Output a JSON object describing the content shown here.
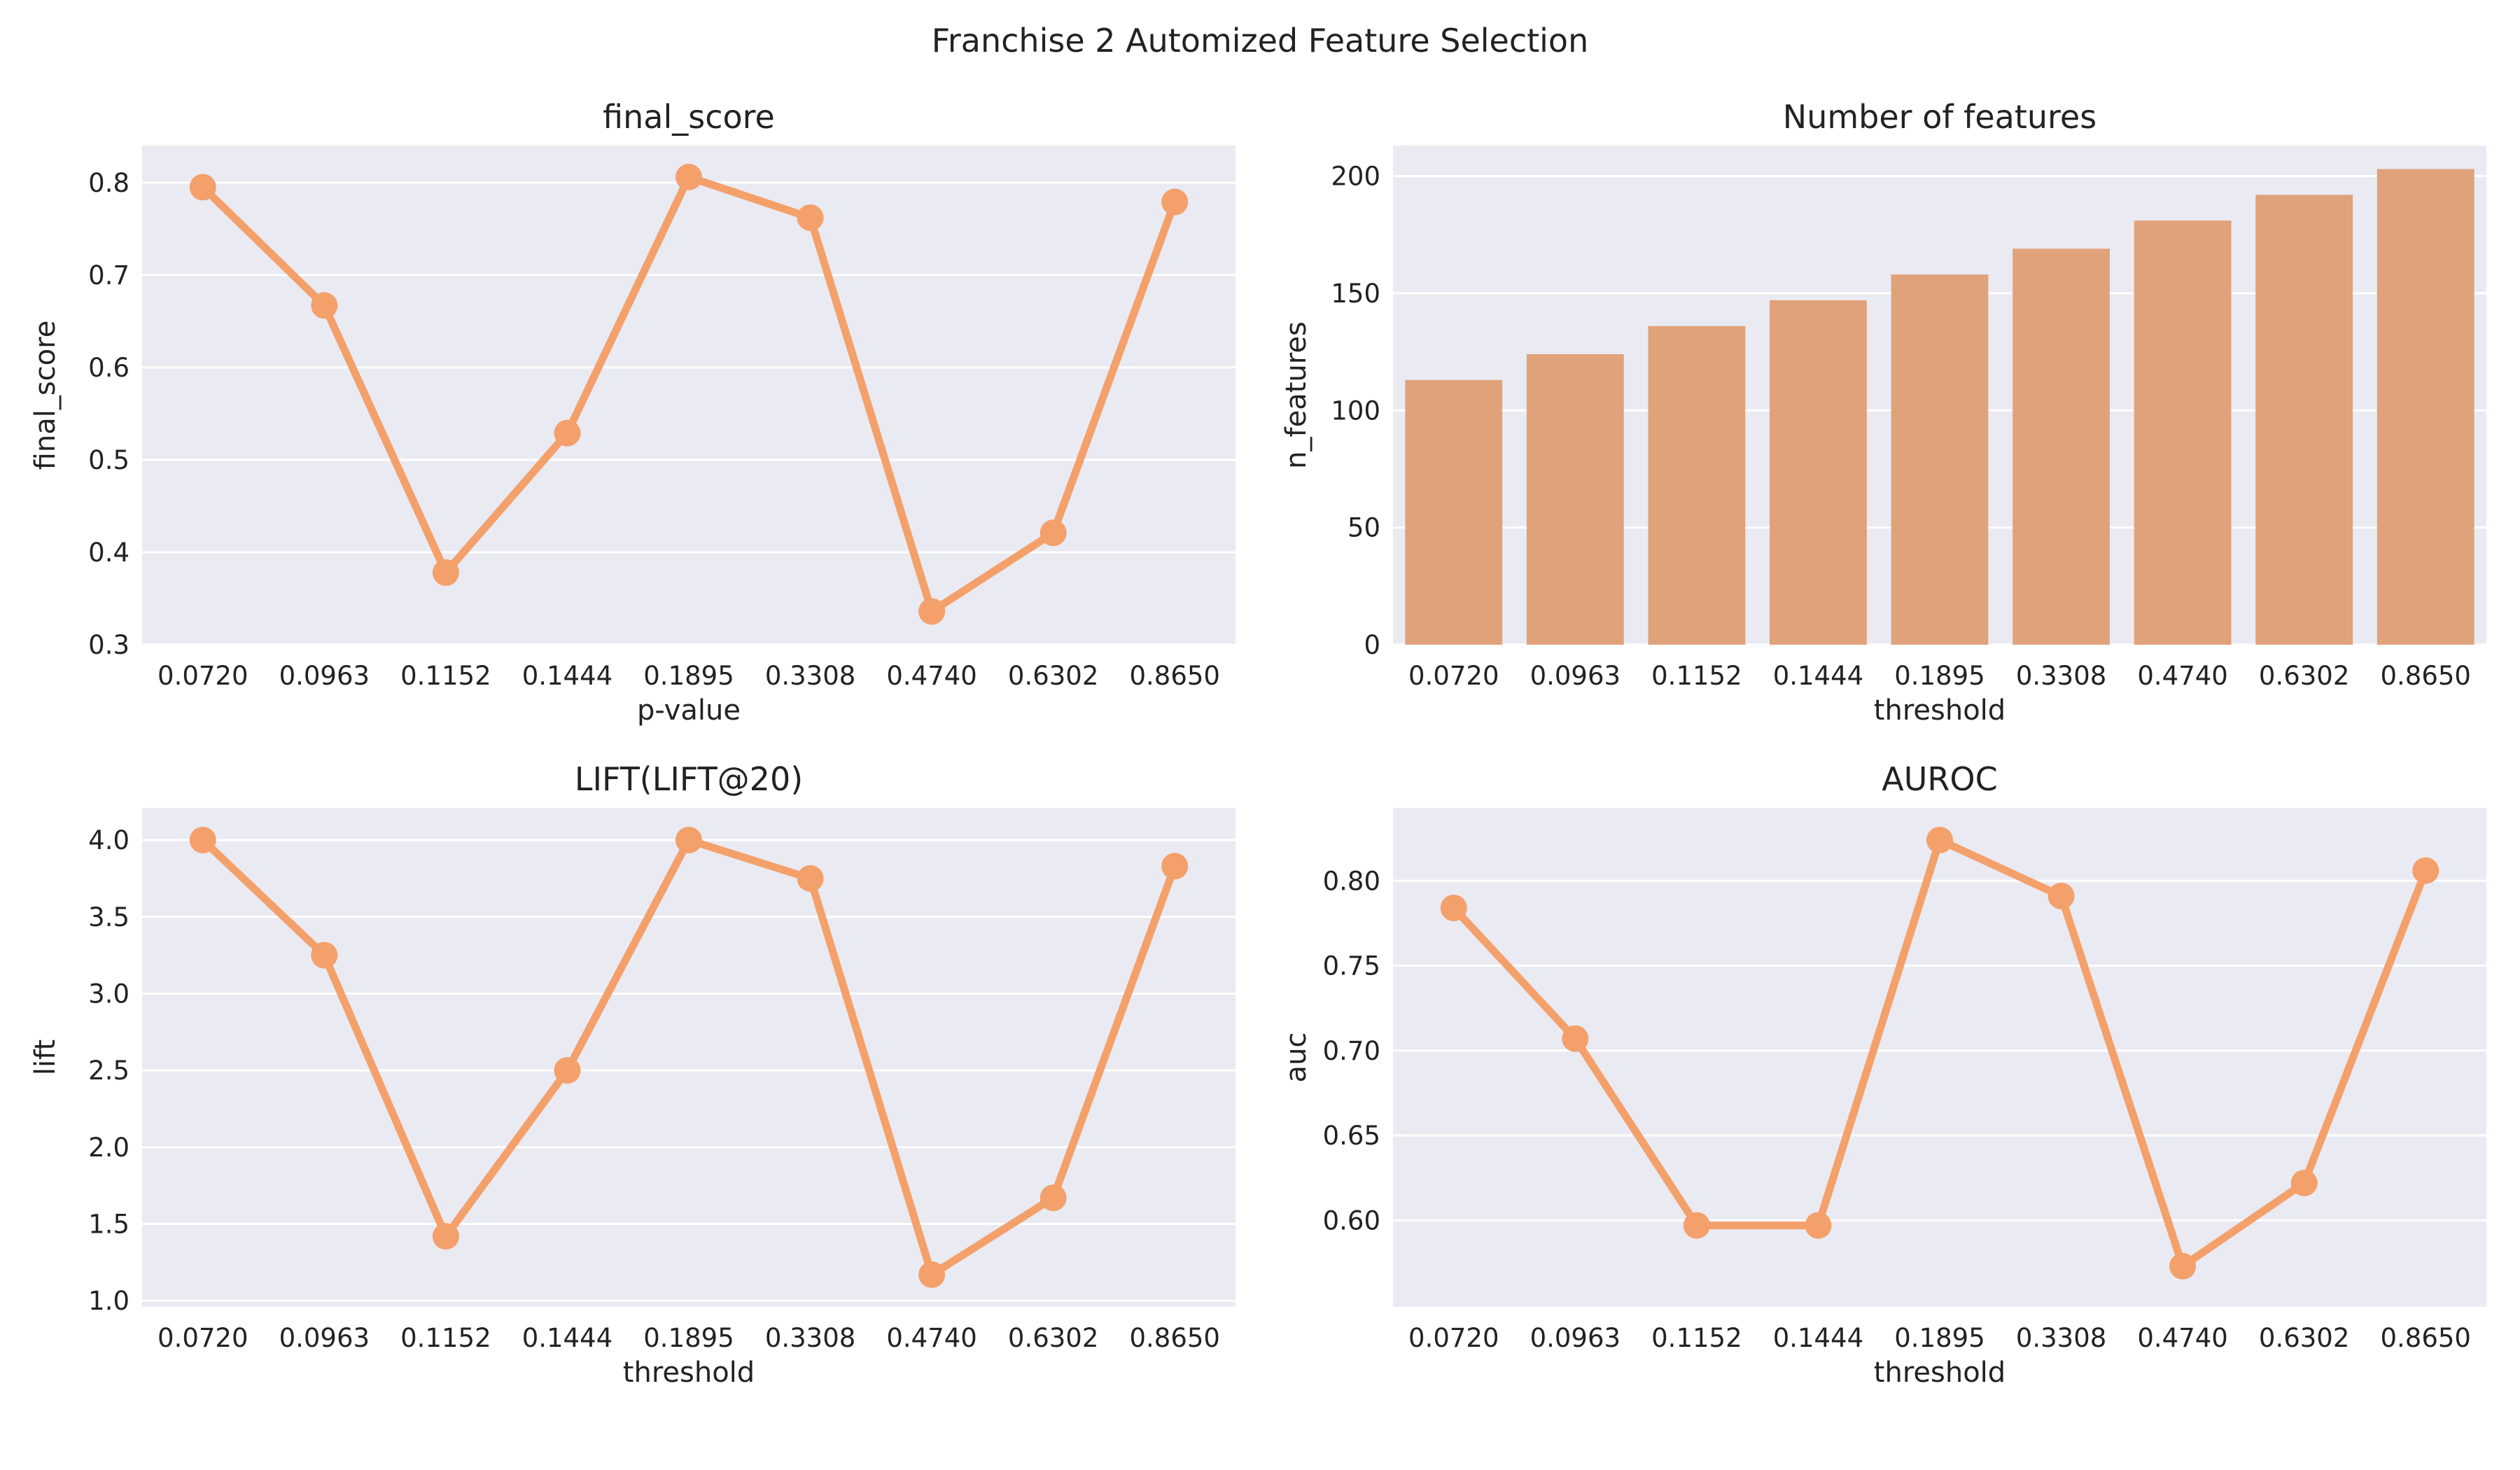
{
  "figure": {
    "title": "Franchise 2 Automized Feature Selection"
  },
  "colors": {
    "background": "#eaeaf2",
    "line": "#f4a06b",
    "bar": "#e0a27b"
  },
  "chart_data": [
    {
      "id": "final-score",
      "type": "line",
      "title": "final_score",
      "xlabel": "p-value",
      "ylabel": "final_score",
      "categories": [
        "0.0720",
        "0.0963",
        "0.1152",
        "0.1444",
        "0.1895",
        "0.3308",
        "0.4740",
        "0.6302",
        "0.8650"
      ],
      "values": [
        0.795,
        0.667,
        0.378,
        0.529,
        0.806,
        0.762,
        0.336,
        0.421,
        0.779
      ],
      "ylim": [
        0.3,
        0.84
      ],
      "yticks": [
        0.3,
        0.4,
        0.5,
        0.6,
        0.7,
        0.8
      ],
      "ytick_labels": [
        "0.3",
        "0.4",
        "0.5",
        "0.6",
        "0.7",
        "0.8"
      ],
      "grid": true
    },
    {
      "id": "n-features",
      "type": "bar",
      "title": "Number of features",
      "xlabel": "threshold",
      "ylabel": "n_features",
      "categories": [
        "0.0720",
        "0.0963",
        "0.1152",
        "0.1444",
        "0.1895",
        "0.3308",
        "0.4740",
        "0.6302",
        "0.8650"
      ],
      "values": [
        113,
        124,
        136,
        147,
        158,
        169,
        181,
        192,
        203
      ],
      "ylim": [
        0,
        213
      ],
      "yticks": [
        0,
        50,
        100,
        150,
        200
      ],
      "ytick_labels": [
        "0",
        "50",
        "100",
        "150",
        "200"
      ],
      "grid": true
    },
    {
      "id": "lift",
      "type": "line",
      "title": "LIFT(LIFT@20)",
      "xlabel": "threshold",
      "ylabel": "lift",
      "categories": [
        "0.0720",
        "0.0963",
        "0.1152",
        "0.1444",
        "0.1895",
        "0.3308",
        "0.4740",
        "0.6302",
        "0.8650"
      ],
      "values": [
        4.0,
        3.25,
        1.42,
        2.5,
        4.0,
        3.75,
        1.17,
        1.67,
        3.83
      ],
      "ylim": [
        0.96,
        4.21
      ],
      "yticks": [
        1.0,
        1.5,
        2.0,
        2.5,
        3.0,
        3.5,
        4.0
      ],
      "ytick_labels": [
        "1.0",
        "1.5",
        "2.0",
        "2.5",
        "3.0",
        "3.5",
        "4.0"
      ],
      "grid": true
    },
    {
      "id": "auroc",
      "type": "line",
      "title": "AUROC",
      "xlabel": "threshold",
      "ylabel": "auc",
      "categories": [
        "0.0720",
        "0.0963",
        "0.1152",
        "0.1444",
        "0.1895",
        "0.3308",
        "0.4740",
        "0.6302",
        "0.8650"
      ],
      "values": [
        0.784,
        0.707,
        0.597,
        0.597,
        0.824,
        0.791,
        0.573,
        0.622,
        0.806
      ],
      "ylim": [
        0.549,
        0.843
      ],
      "yticks": [
        0.6,
        0.65,
        0.7,
        0.75,
        0.8
      ],
      "ytick_labels": [
        "0.60",
        "0.65",
        "0.70",
        "0.75",
        "0.80"
      ],
      "grid": true
    }
  ]
}
